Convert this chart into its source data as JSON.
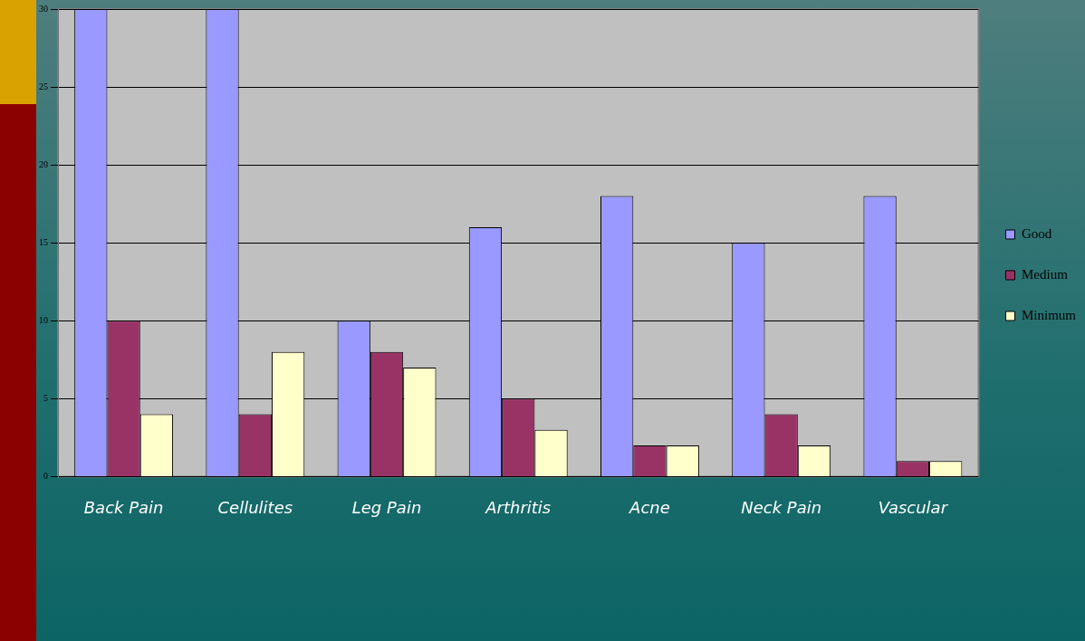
{
  "chart_data": {
    "type": "bar",
    "categories": [
      "Back Pain",
      "Cellulites",
      "Leg Pain",
      "Arthritis",
      "Acne",
      "Neck Pain",
      "Vascular"
    ],
    "series": [
      {
        "name": "Good",
        "color": "#9999ff",
        "values": [
          30,
          30,
          10,
          16,
          18,
          15,
          18
        ]
      },
      {
        "name": "Medium",
        "color": "#993366",
        "values": [
          10,
          4,
          8,
          5,
          2,
          4,
          1
        ]
      },
      {
        "name": "Minimum",
        "color": "#ffffcc",
        "values": [
          4,
          8,
          7,
          3,
          2,
          2,
          1
        ]
      }
    ],
    "ylim": [
      0,
      30
    ],
    "yticks": [
      0,
      5,
      10,
      15,
      20,
      25,
      30
    ],
    "grid": "y",
    "legend": "right"
  }
}
